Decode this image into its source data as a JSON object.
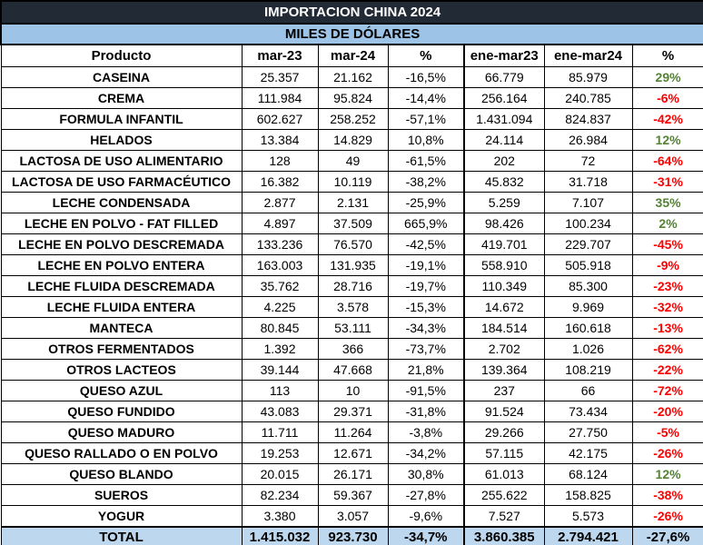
{
  "title": "IMPORTACION CHINA 2024",
  "subtitle": "MILES DE DÓLARES",
  "headers": [
    "Producto",
    "mar-23",
    "mar-24",
    "%",
    "ene-mar23",
    "ene-mar24",
    "%"
  ],
  "colors": {
    "title_bg": "#222a35",
    "subtitle_bg": "#9dc3e6",
    "total_bg": "#bdd7ee",
    "positive": "#548235",
    "negative": "#ff0000"
  },
  "rows": [
    [
      "CASEINA",
      "25.357",
      "21.162",
      "-16,5%",
      "66.779",
      "85.979",
      "29%"
    ],
    [
      "CREMA",
      "111.984",
      "95.824",
      "-14,4%",
      "256.164",
      "240.785",
      "-6%"
    ],
    [
      "FORMULA INFANTIL",
      "602.627",
      "258.252",
      "-57,1%",
      "1.431.094",
      "824.837",
      "-42%"
    ],
    [
      "HELADOS",
      "13.384",
      "14.829",
      "10,8%",
      "24.114",
      "26.984",
      "12%"
    ],
    [
      "LACTOSA DE USO ALIMENTARIO",
      "128",
      "49",
      "-61,5%",
      "202",
      "72",
      "-64%"
    ],
    [
      "LACTOSA DE USO FARMACÉUTICO",
      "16.382",
      "10.119",
      "-38,2%",
      "45.832",
      "31.718",
      "-31%"
    ],
    [
      "LECHE CONDENSADA",
      "2.877",
      "2.131",
      "-25,9%",
      "5.259",
      "7.107",
      "35%"
    ],
    [
      "LECHE EN POLVO - FAT FILLED",
      "4.897",
      "37.509",
      "665,9%",
      "98.426",
      "100.234",
      "2%"
    ],
    [
      "LECHE EN POLVO DESCREMADA",
      "133.236",
      "76.570",
      "-42,5%",
      "419.701",
      "229.707",
      "-45%"
    ],
    [
      "LECHE EN POLVO ENTERA",
      "163.003",
      "131.935",
      "-19,1%",
      "558.910",
      "505.918",
      "-9%"
    ],
    [
      "LECHE FLUIDA DESCREMADA",
      "35.762",
      "28.716",
      "-19,7%",
      "110.349",
      "85.300",
      "-23%"
    ],
    [
      "LECHE FLUIDA ENTERA",
      "4.225",
      "3.578",
      "-15,3%",
      "14.672",
      "9.969",
      "-32%"
    ],
    [
      "MANTECA",
      "80.845",
      "53.111",
      "-34,3%",
      "184.514",
      "160.618",
      "-13%"
    ],
    [
      "OTROS FERMENTADOS",
      "1.392",
      "366",
      "-73,7%",
      "2.702",
      "1.026",
      "-62%"
    ],
    [
      "OTROS LACTEOS",
      "39.144",
      "47.668",
      "21,8%",
      "139.364",
      "108.219",
      "-22%"
    ],
    [
      "QUESO AZUL",
      "113",
      "10",
      "-91,5%",
      "237",
      "66",
      "-72%"
    ],
    [
      "QUESO FUNDIDO",
      "43.083",
      "29.371",
      "-31,8%",
      "91.524",
      "73.434",
      "-20%"
    ],
    [
      "QUESO MADURO",
      "11.711",
      "11.264",
      "-3,8%",
      "29.266",
      "27.750",
      "-5%"
    ],
    [
      "QUESO RALLADO O EN POLVO",
      "19.253",
      "12.671",
      "-34,2%",
      "57.115",
      "42.175",
      "-26%"
    ],
    [
      "QUESO BLANDO",
      "20.015",
      "26.171",
      "30,8%",
      "61.013",
      "68.124",
      "12%"
    ],
    [
      "SUEROS",
      "82.234",
      "59.367",
      "-27,8%",
      "255.622",
      "158.825",
      "-38%"
    ],
    [
      "YOGUR",
      "3.380",
      "3.057",
      "-9,6%",
      "7.527",
      "5.573",
      "-26%"
    ]
  ],
  "total": [
    "TOTAL",
    "1.415.032",
    "923.730",
    "-34,7%",
    "3.860.385",
    "2.794.421",
    "-27,6%"
  ]
}
